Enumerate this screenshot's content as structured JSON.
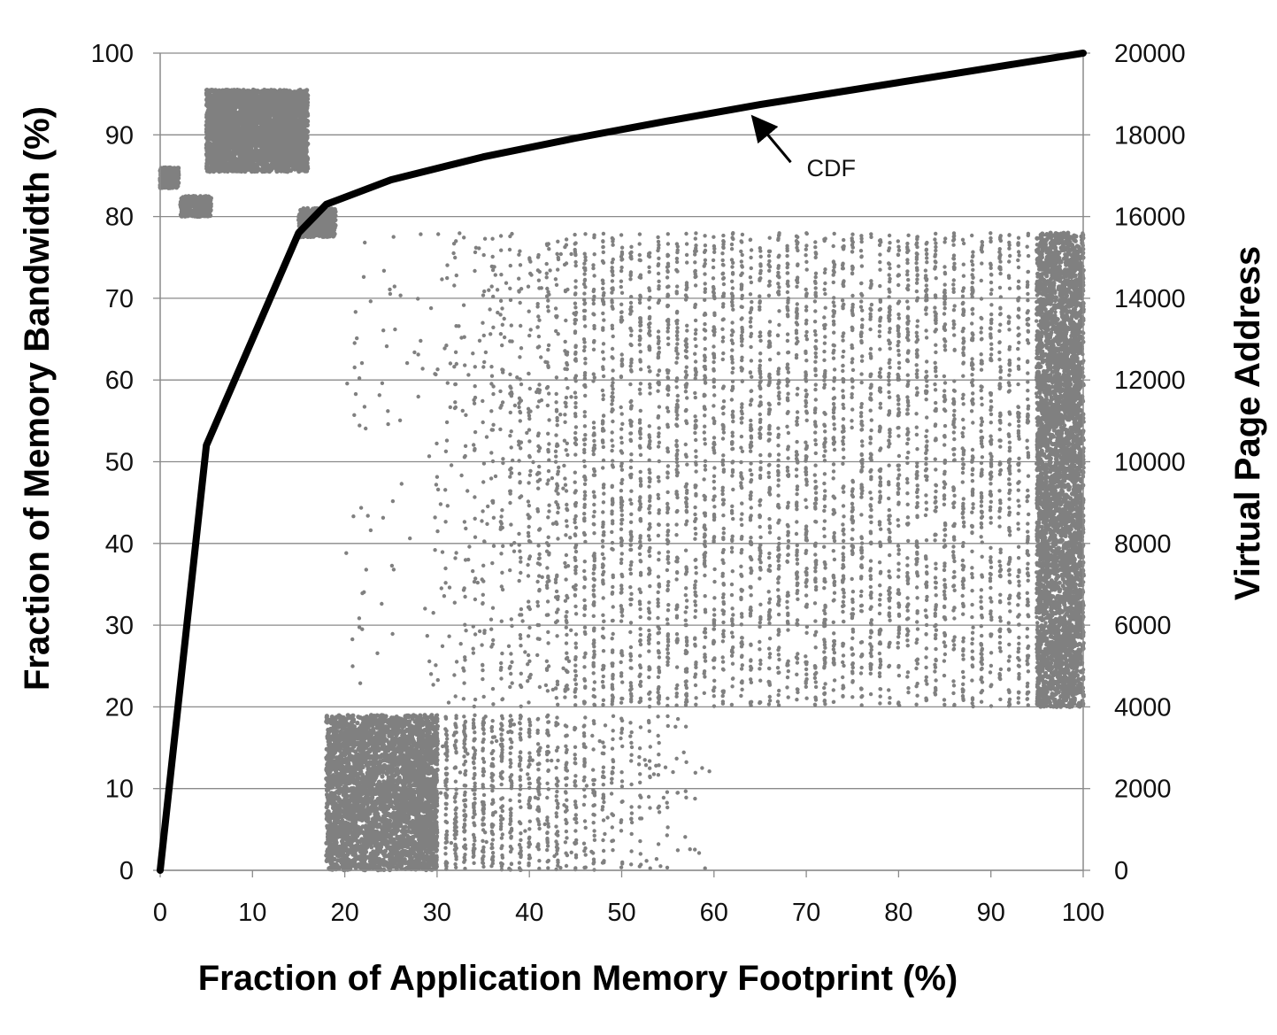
{
  "chart_data": {
    "type": "line",
    "title": "",
    "xlabel": "Fraction of Application Memory Footprint (%)",
    "ylabel": "Fraction of Memory Bandwidth (%)",
    "y2label": "Virtual Page Address",
    "xlim": [
      0,
      100
    ],
    "ylim": [
      0,
      100
    ],
    "y2lim": [
      0,
      20000
    ],
    "x_ticks": [
      "0",
      "10",
      "20",
      "30",
      "40",
      "50",
      "60",
      "70",
      "80",
      "90",
      "100"
    ],
    "y_ticks": [
      "0",
      "10",
      "20",
      "30",
      "40",
      "50",
      "60",
      "70",
      "80",
      "90",
      "100"
    ],
    "y2_ticks": [
      "0",
      "2000",
      "4000",
      "6000",
      "8000",
      "10000",
      "12000",
      "14000",
      "16000",
      "18000",
      "20000"
    ],
    "grid": "horizontal",
    "series": [
      {
        "axis": "left",
        "style": "thick-black-line",
        "color": "#000000",
        "x": [
          0,
          5,
          15,
          18,
          25,
          35,
          45,
          55,
          65,
          75,
          85,
          95,
          100
        ],
        "y": [
          0,
          52,
          78,
          81.5,
          84.5,
          87.3,
          89.6,
          91.7,
          93.7,
          95.5,
          97.3,
          99.1,
          100
        ]
      },
      {
        "axis": "right",
        "style": "scatter",
        "color": "#808080",
        "regions": [
          {
            "x_range": [
              0,
              2
            ],
            "y2_range": [
              16700,
              17200
            ],
            "density": "dense"
          },
          {
            "x_range": [
              2.2,
              5.5
            ],
            "y2_range": [
              16000,
              16500
            ],
            "density": "dense"
          },
          {
            "x_range": [
              5,
              16
            ],
            "y2_range": [
              17100,
              19100
            ],
            "density": "dense"
          },
          {
            "x_range": [
              15,
              19
            ],
            "y2_range": [
              15500,
              16200
            ],
            "density": "dense"
          },
          {
            "x_range": [
              18,
              30
            ],
            "y2_range": [
              0,
              3800
            ],
            "density": "dense"
          },
          {
            "x_range": [
              30,
              60
            ],
            "y2_range": [
              0,
              3800
            ],
            "density": "sparse"
          },
          {
            "x_range": [
              45,
              100
            ],
            "y2_range": [
              4000,
              15600
            ],
            "density": "striped"
          },
          {
            "x_range": [
              20,
              45
            ],
            "y2_range": [
              4000,
              15600
            ],
            "density": "sparse"
          },
          {
            "x_range": [
              95,
              100
            ],
            "y2_range": [
              4000,
              15600
            ],
            "density": "dense"
          }
        ]
      }
    ],
    "annotations": [
      {
        "text": "CDF",
        "arrow_to": [
          64,
          92.5
        ]
      }
    ]
  }
}
